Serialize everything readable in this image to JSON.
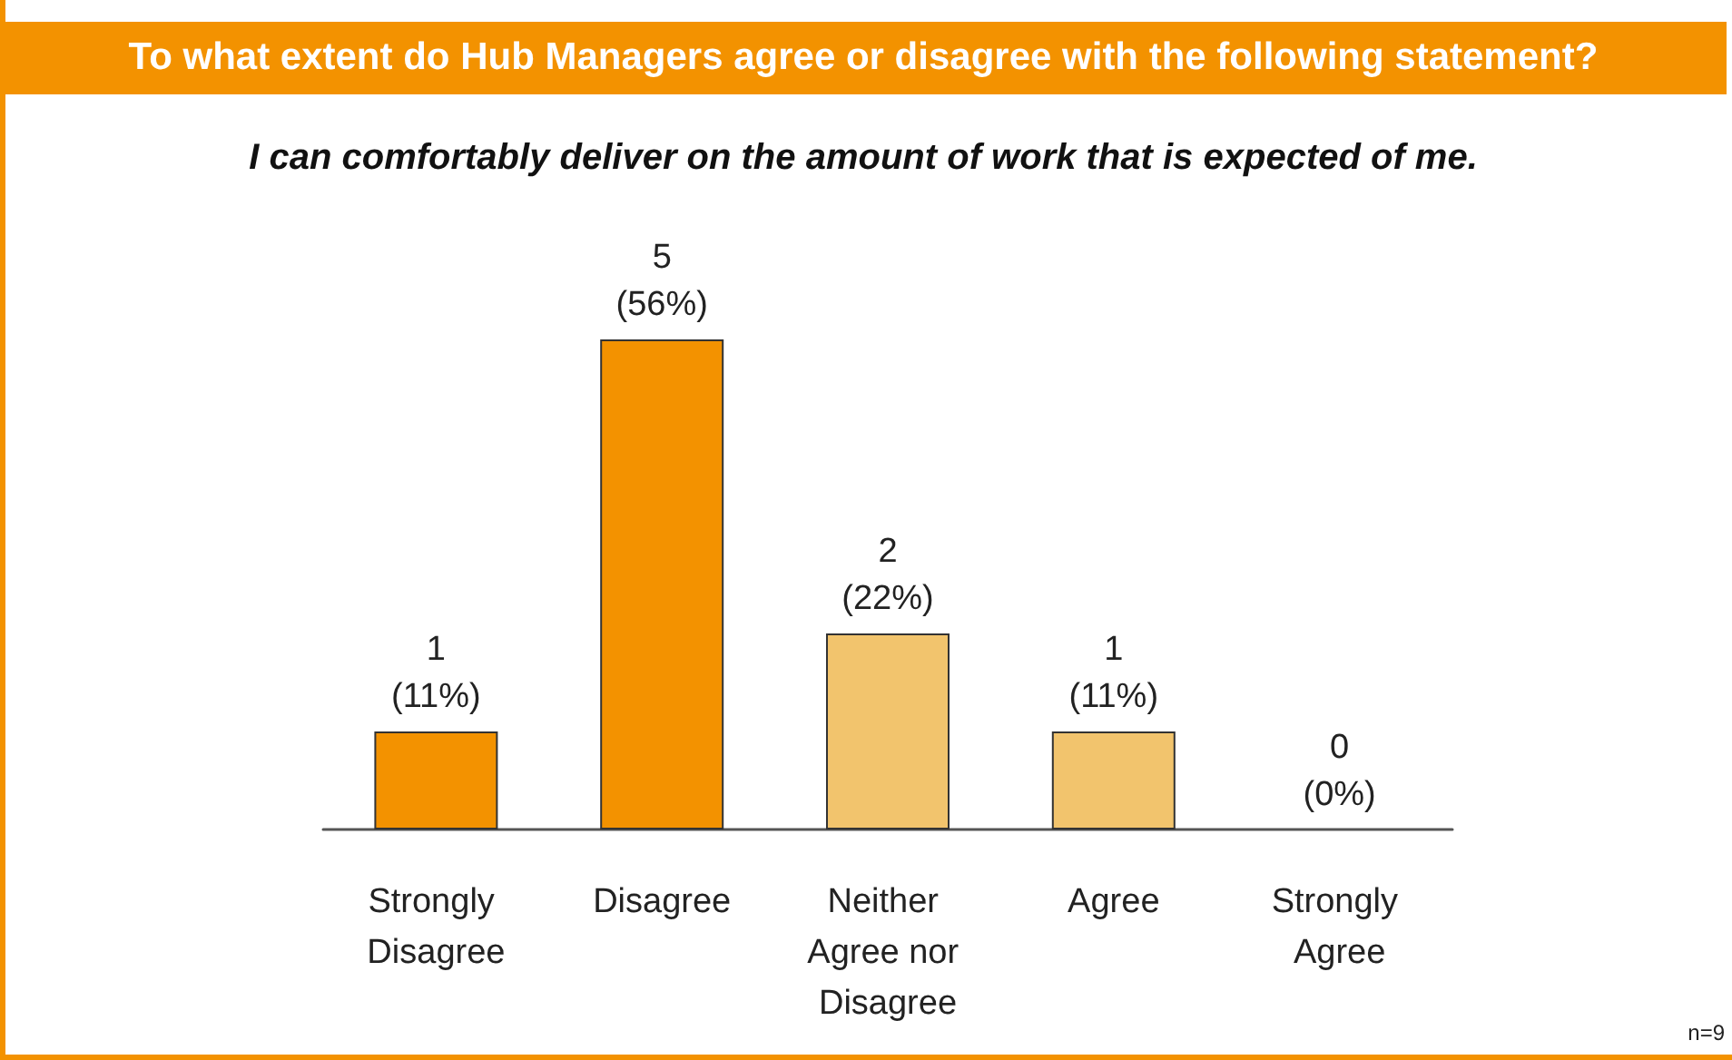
{
  "chart_data": {
    "type": "bar",
    "title": "To what extent do Hub Managers agree or disagree with the following statement?",
    "subtitle": "I can comfortably deliver on the amount of work that is expected of me.",
    "categories": [
      "Strongly Disagree",
      "Disagree",
      "Neither Agree nor Disagree",
      "Agree",
      "Strongly Agree"
    ],
    "values": [
      1,
      5,
      2,
      1,
      0
    ],
    "colors": [
      "#f39200",
      "#f39200",
      "#f2c46d",
      "#f2c46d",
      "#f2c46d"
    ],
    "value_labels": [
      "1\n(11%)",
      "5\n(56%)",
      "2\n(22%)",
      "1\n(11%)",
      "0\n(0%)"
    ],
    "annotations": [
      "n=9"
    ],
    "tick_labels": "x",
    "grid": false
  }
}
